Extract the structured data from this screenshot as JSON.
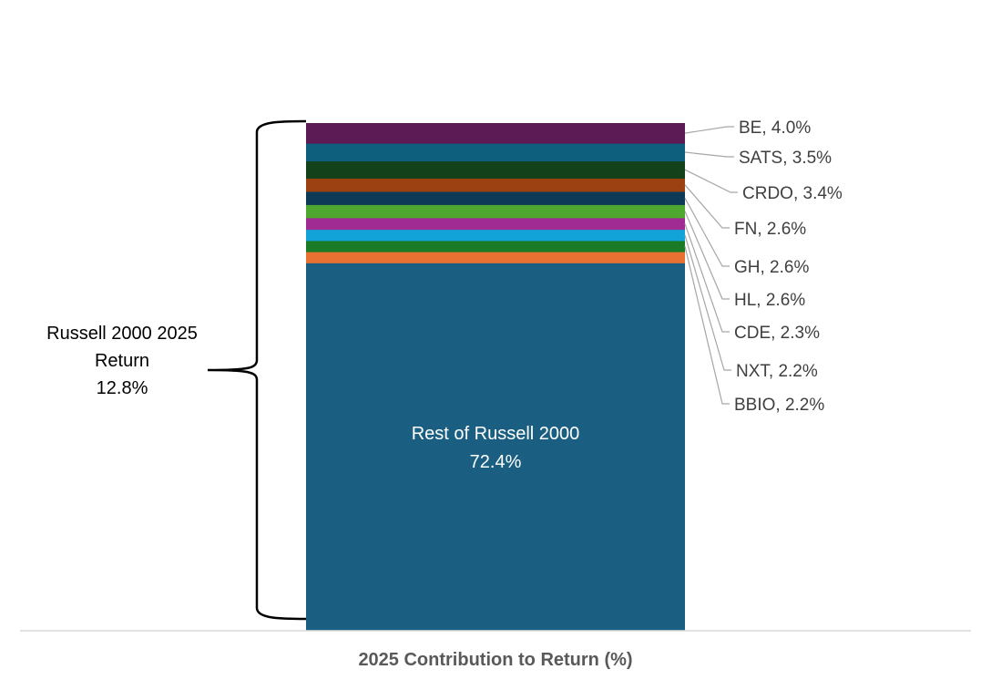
{
  "chart_data": {
    "type": "bar",
    "subtype": "stacked-100",
    "category": "2025 Contribution to Return (%)",
    "xlabel": "2025 Contribution to Return (%)",
    "ylabel": "",
    "ylim": [
      0,
      100
    ],
    "grid": false,
    "legend": "none",
    "series": [
      {
        "name": "Rest of Russell 2000",
        "value": 72.4,
        "label": "Rest of Russell 2000",
        "value_text": "72.4%",
        "color": "#1a5f82",
        "label_position": "inside"
      },
      {
        "name": "ORANGE",
        "value": 2.2,
        "label": "",
        "color": "#e97132"
      },
      {
        "name": "BBIO",
        "value": 2.2,
        "label": "BBIO, 2.2%",
        "color": "#1b7a25"
      },
      {
        "name": "NXT",
        "value": 2.2,
        "label": "NXT, 2.2%",
        "color": "#12a4d9"
      },
      {
        "name": "CDE",
        "value": 2.3,
        "label": "CDE, 2.3%",
        "color": "#a02b93"
      },
      {
        "name": "HL",
        "value": 2.6,
        "label": "HL, 2.6%",
        "color": "#4ea72e"
      },
      {
        "name": "GH",
        "value": 2.6,
        "label": "GH, 2.6%",
        "color": "#0d3a56"
      },
      {
        "name": "FN",
        "value": 2.6,
        "label": "FN, 2.6%",
        "color": "#9c4112"
      },
      {
        "name": "CRDO",
        "value": 3.4,
        "label": "CRDO, 3.4%",
        "color": "#12411a"
      },
      {
        "name": "SATS",
        "value": 3.5,
        "label": "SATS, 3.5%",
        "color": "#0e5f7d"
      },
      {
        "name": "BE",
        "value": 4.0,
        "label": "BE, 4.0%",
        "color": "#5c1b55"
      }
    ],
    "bracket_annotation": {
      "lines": [
        "Russell 2000 2025",
        "Return",
        "12.8%"
      ]
    }
  },
  "colors": {
    "axis_line": "#d9d9d9",
    "leader_line": "#a6a6a6",
    "label_text": "#3f3f3f",
    "axis_title": "#595959",
    "brace": "#000000"
  }
}
